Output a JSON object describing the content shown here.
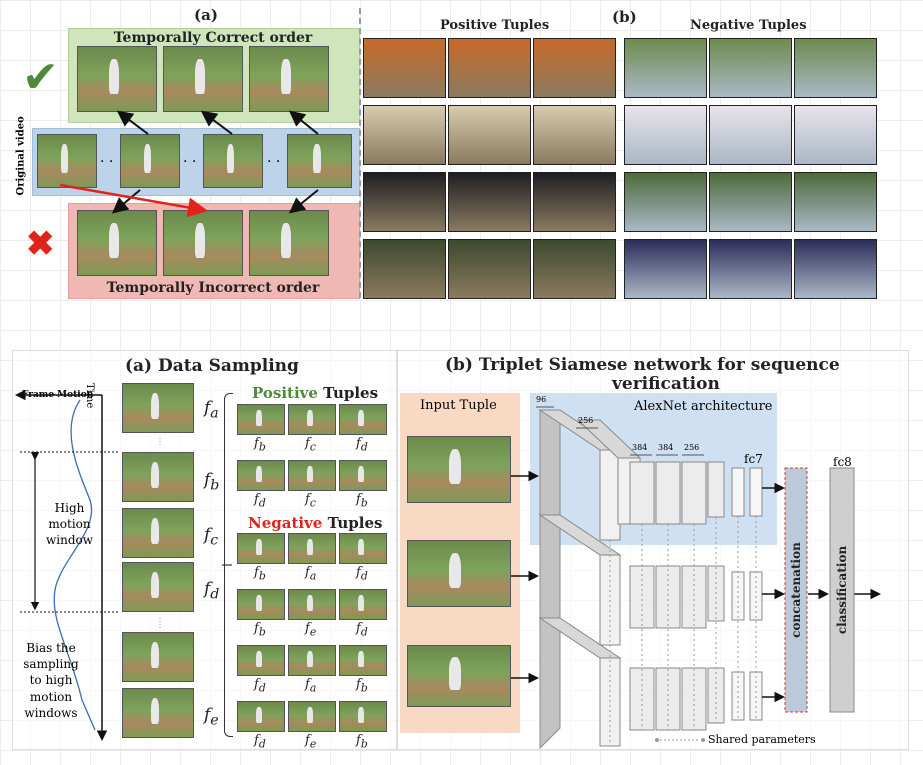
{
  "top_left": {
    "panel_tag": "(a)",
    "correct_title": "Temporally Correct order",
    "incorrect_title": "Temporally Incorrect order",
    "side_label": "Original video",
    "check_symbol": "✔",
    "cross_symbol": "✖",
    "dots": ". ."
  },
  "top_right": {
    "panel_tag": "(b)",
    "positive_title": "Positive Tuples",
    "negative_title": "Negative Tuples"
  },
  "sampling": {
    "title": "(a) Data Sampling",
    "frame_motion": "Frame Motion",
    "time": "Time",
    "high_motion_window": [
      "High",
      "motion",
      "window"
    ],
    "bias_text": [
      "Bias the",
      "sampling",
      "to high",
      "motion",
      "windows"
    ],
    "frame_labels": [
      "a",
      "b",
      "c",
      "d",
      "e"
    ],
    "positive_word": "Positive",
    "negative_word": "Negative",
    "tuples_word": "Tuples",
    "positive_rows": [
      [
        "b",
        "c",
        "d"
      ],
      [
        "d",
        "c",
        "b"
      ]
    ],
    "negative_rows": [
      [
        "b",
        "a",
        "d"
      ],
      [
        "b",
        "e",
        "d"
      ],
      [
        "d",
        "a",
        "b"
      ],
      [
        "d",
        "e",
        "b"
      ]
    ]
  },
  "network": {
    "title_line1": "(b)  Triplet Siamese network for sequence",
    "title_line2": "verification",
    "input_tuple": "Input Tuple",
    "alexnet": "AlexNet architecture",
    "dims": [
      "96",
      "256",
      "384",
      "384",
      "256"
    ],
    "fc7": "fc7",
    "fc8": "fc8",
    "concatenation": "concatenation",
    "classification": "classification",
    "shared": "Shared parameters"
  },
  "colors": {
    "green_panel": "#cfe6bd",
    "blue_panel": "#bcd3ea",
    "red_panel": "#efb8b3",
    "input_panel": "#f8d9c4",
    "alexnet_panel": "#cfe0f2",
    "positive": "#4e8a3a",
    "negative": "#e0241b",
    "check": "#4e8a3a",
    "cross": "#e0241b"
  }
}
